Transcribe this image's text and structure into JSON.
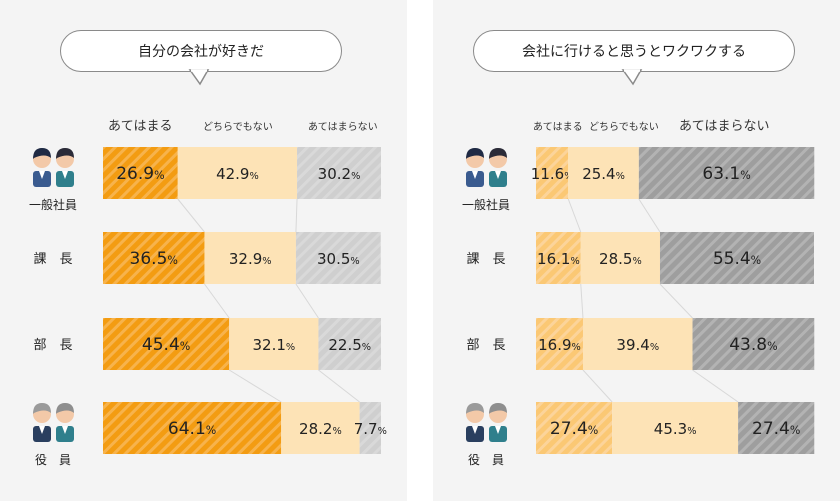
{
  "colors": {
    "agree": "#f39c12",
    "agree_stripe": "#f7b34c",
    "neutral": "#fde3b6",
    "disagree": "#cfcfcf",
    "disagree_dark": "#9e9e9e",
    "disagree_stripe": "#b3b3b3",
    "left_agree_light": "#fbc874"
  },
  "chart_data": [
    {
      "type": "bar",
      "orientation": "horizontal-stacked-100",
      "title": "自分の会社が好きだ",
      "legend": [
        "あてはまる",
        "どちらでもない",
        "あてはまらない"
      ],
      "categories": [
        "一般社員",
        "課　長",
        "部　長",
        "役　員"
      ],
      "series": [
        {
          "name": "あてはまる",
          "values": [
            26.9,
            36.5,
            45.4,
            64.1
          ]
        },
        {
          "name": "どちらでもない",
          "values": [
            42.9,
            32.9,
            32.1,
            28.2
          ]
        },
        {
          "name": "あてはまらない",
          "values": [
            30.2,
            30.5,
            22.5,
            7.7
          ]
        }
      ],
      "value_unit": "%"
    },
    {
      "type": "bar",
      "orientation": "horizontal-stacked-100",
      "title": "会社に行けると思うとワクワクする",
      "legend": [
        "あてはまる",
        "どちらでもない",
        "あてはまらない"
      ],
      "categories": [
        "一般社員",
        "課　長",
        "部　長",
        "役　員"
      ],
      "series": [
        {
          "name": "あてはまる",
          "values": [
            11.6,
            16.1,
            16.9,
            27.4
          ]
        },
        {
          "name": "どちらでもない",
          "values": [
            25.4,
            28.5,
            39.4,
            45.3
          ]
        },
        {
          "name": "あてはまらない",
          "values": [
            63.1,
            55.4,
            43.8,
            27.4
          ]
        }
      ],
      "value_unit": "%"
    }
  ]
}
